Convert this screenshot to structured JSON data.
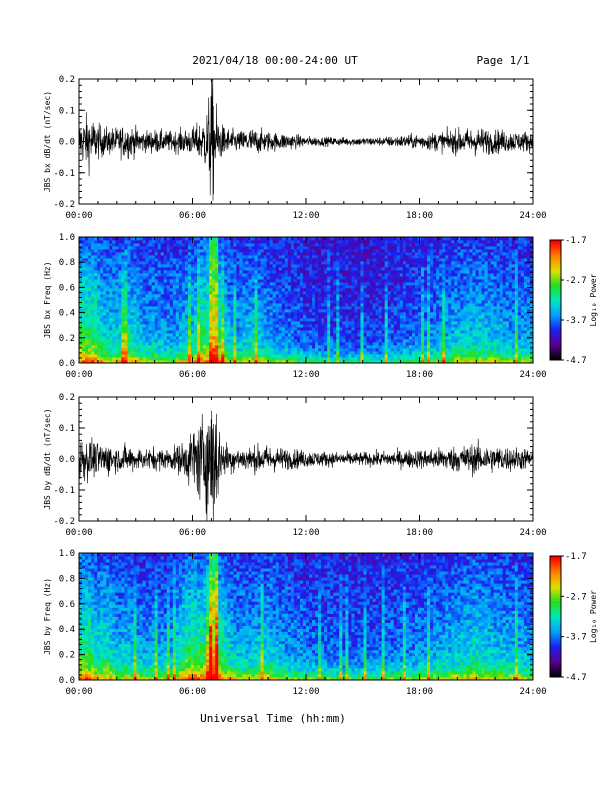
{
  "header": {
    "date_range": "2021/04/18  00:00-24:00 UT",
    "page": "Page 1/1"
  },
  "xlabel": "Universal Time (hh:mm)",
  "chart_data": [
    {
      "type": "line",
      "name": "bx-derivative",
      "ylabel": "JBS bx dB/dt (nT/sec)",
      "xlim": [
        0,
        24
      ],
      "ylim": [
        -0.2,
        0.2
      ],
      "xticks": [
        "00:00",
        "06:00",
        "12:00",
        "18:00",
        "24:00"
      ],
      "yticks": [
        "-0.2",
        "-0.1",
        "0.0",
        "0.1",
        "0.2"
      ],
      "envelope": {
        "hours": [
          0,
          0.5,
          1,
          1.5,
          2,
          2.5,
          3,
          3.5,
          4,
          4.5,
          5,
          5.5,
          6,
          6.5,
          6.8,
          7.0,
          7.2,
          7.5,
          8,
          8.5,
          9,
          9.5,
          10,
          10.5,
          11,
          11.5,
          12,
          13,
          14,
          15,
          16,
          17,
          18,
          19,
          20,
          21,
          22,
          23,
          24
        ],
        "amplitude": [
          0.06,
          0.08,
          0.05,
          0.04,
          0.04,
          0.05,
          0.04,
          0.03,
          0.035,
          0.03,
          0.03,
          0.035,
          0.04,
          0.06,
          0.1,
          0.21,
          0.12,
          0.05,
          0.035,
          0.03,
          0.04,
          0.035,
          0.03,
          0.025,
          0.025,
          0.02,
          0.015,
          0.013,
          0.012,
          0.012,
          0.013,
          0.018,
          0.022,
          0.028,
          0.035,
          0.04,
          0.035,
          0.03,
          0.03
        ]
      }
    },
    {
      "type": "heatmap",
      "name": "bx-spectrogram",
      "ylabel": "JBS bx Freq (Hz)",
      "xlim": [
        0,
        24
      ],
      "ylim": [
        0,
        1.0
      ],
      "xticks": [
        "00:00",
        "06:00",
        "12:00",
        "18:00",
        "24:00"
      ],
      "yticks": [
        "0.0",
        "0.2",
        "0.4",
        "0.6",
        "0.8",
        "1.0"
      ],
      "colorbar": {
        "label": "Log₁₀ Power",
        "ticks": [
          "-1.7",
          "-2.7",
          "-3.7",
          "-4.7"
        ],
        "range": [
          -4.7,
          -1.7
        ]
      },
      "colors": [
        "#000000",
        "#5a0090",
        "#1e1ef0",
        "#00a0ff",
        "#00e8c0",
        "#20e020",
        "#e0e000",
        "#ff8000",
        "#ff0000"
      ]
    },
    {
      "type": "line",
      "name": "by-derivative",
      "ylabel": "JBS by dB/dt (nT/sec)",
      "xlim": [
        0,
        24
      ],
      "ylim": [
        -0.2,
        0.2
      ],
      "xticks": [
        "00:00",
        "06:00",
        "12:00",
        "18:00",
        "24:00"
      ],
      "yticks": [
        "-0.2",
        "-0.1",
        "0.0",
        "0.1",
        "0.2"
      ],
      "envelope": {
        "hours": [
          0,
          0.5,
          1,
          1.5,
          2,
          2.5,
          3,
          3.5,
          4,
          4.5,
          5,
          5.5,
          6,
          6.5,
          6.8,
          7.0,
          7.2,
          7.5,
          8,
          8.5,
          9,
          9.5,
          10,
          10.5,
          11,
          11.5,
          12,
          13,
          14,
          15,
          16,
          17,
          18,
          19,
          20,
          21,
          22,
          23,
          24
        ],
        "amplitude": [
          0.07,
          0.06,
          0.045,
          0.05,
          0.035,
          0.04,
          0.035,
          0.03,
          0.035,
          0.03,
          0.035,
          0.05,
          0.09,
          0.13,
          0.16,
          0.22,
          0.2,
          0.06,
          0.04,
          0.035,
          0.035,
          0.04,
          0.04,
          0.035,
          0.03,
          0.028,
          0.025,
          0.022,
          0.02,
          0.02,
          0.022,
          0.025,
          0.028,
          0.032,
          0.038,
          0.045,
          0.038,
          0.035,
          0.03
        ]
      }
    },
    {
      "type": "heatmap",
      "name": "by-spectrogram",
      "ylabel": "JBS by Freq (Hz)",
      "xlim": [
        0,
        24
      ],
      "ylim": [
        0,
        1.0
      ],
      "xticks": [
        "00:00",
        "06:00",
        "12:00",
        "18:00",
        "24:00"
      ],
      "yticks": [
        "0.0",
        "0.2",
        "0.4",
        "0.6",
        "0.8",
        "1.0"
      ],
      "colorbar": {
        "label": "Log₁₀ Power",
        "ticks": [
          "-1.7",
          "-2.7",
          "-3.7",
          "-4.7"
        ],
        "range": [
          -4.7,
          -1.7
        ]
      },
      "colors": [
        "#000000",
        "#5a0090",
        "#1e1ef0",
        "#00a0ff",
        "#00e8c0",
        "#20e020",
        "#e0e000",
        "#ff8000",
        "#ff0000"
      ]
    }
  ]
}
